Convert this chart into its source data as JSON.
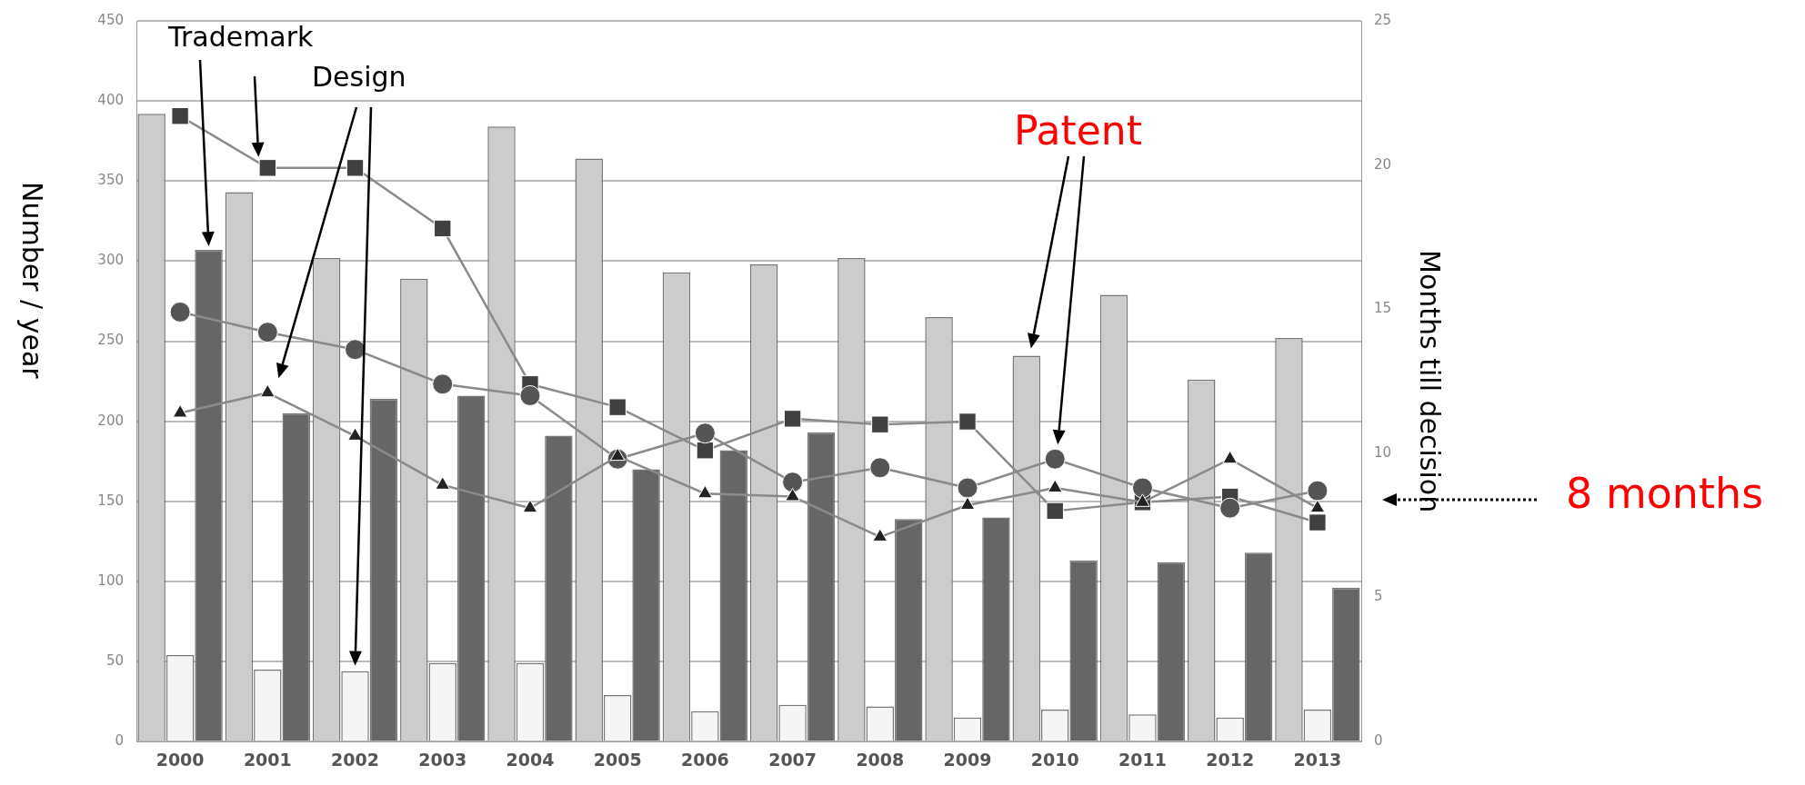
{
  "chart_data": {
    "type": "bar",
    "categories": [
      "2000",
      "2001",
      "2002",
      "2003",
      "2004",
      "2005",
      "2006",
      "2007",
      "2008",
      "2009",
      "2010",
      "2011",
      "2012",
      "2013"
    ],
    "ylabel": "Number / year",
    "y2label": "Months till decision",
    "ylim": [
      0,
      450
    ],
    "yticks": [
      0,
      50,
      100,
      150,
      200,
      250,
      300,
      350,
      400,
      450
    ],
    "y2lim": [
      0,
      25
    ],
    "y2ticks": [
      0,
      5,
      10,
      15,
      20,
      25
    ],
    "grid": "y",
    "legend": false,
    "series": [
      {
        "color": "#cccccc",
        "values": [
          392,
          343,
          302,
          289,
          384,
          364,
          293,
          298,
          302,
          265,
          241,
          279,
          226,
          252
        ]
      },
      {
        "color": "#f5f5f5",
        "values": [
          54,
          45,
          44,
          49,
          49,
          29,
          19,
          23,
          22,
          15,
          20,
          17,
          15,
          20
        ]
      },
      {
        "color": "#666666",
        "values": [
          307,
          205,
          214,
          216,
          191,
          170,
          182,
          193,
          139,
          140,
          113,
          112,
          118,
          96
        ]
      },
      {
        "type": "line",
        "axis": "y2",
        "color": "#404040",
        "marker": "square",
        "values": [
          21.7,
          19.9,
          19.9,
          17.8,
          12.4,
          11.6,
          10.1,
          11.2,
          11.0,
          11.1,
          8.0,
          8.3,
          8.5,
          7.6
        ]
      },
      {
        "type": "line",
        "axis": "y2",
        "color": "#555555",
        "marker": "circle",
        "values": [
          14.9,
          14.2,
          13.6,
          12.4,
          12.0,
          9.8,
          10.7,
          9.0,
          9.5,
          8.8,
          9.8,
          8.8,
          8.1,
          8.7
        ]
      },
      {
        "type": "line",
        "axis": "y2",
        "color": "#222222",
        "marker": "triangle",
        "values": [
          11.4,
          12.1,
          10.6,
          8.9,
          8.1,
          9.9,
          8.6,
          8.5,
          7.1,
          8.2,
          8.8,
          8.3,
          9.8,
          8.1
        ]
      }
    ],
    "annotations": [
      "Trademark",
      "Design",
      "Patent",
      "8 months"
    ]
  }
}
